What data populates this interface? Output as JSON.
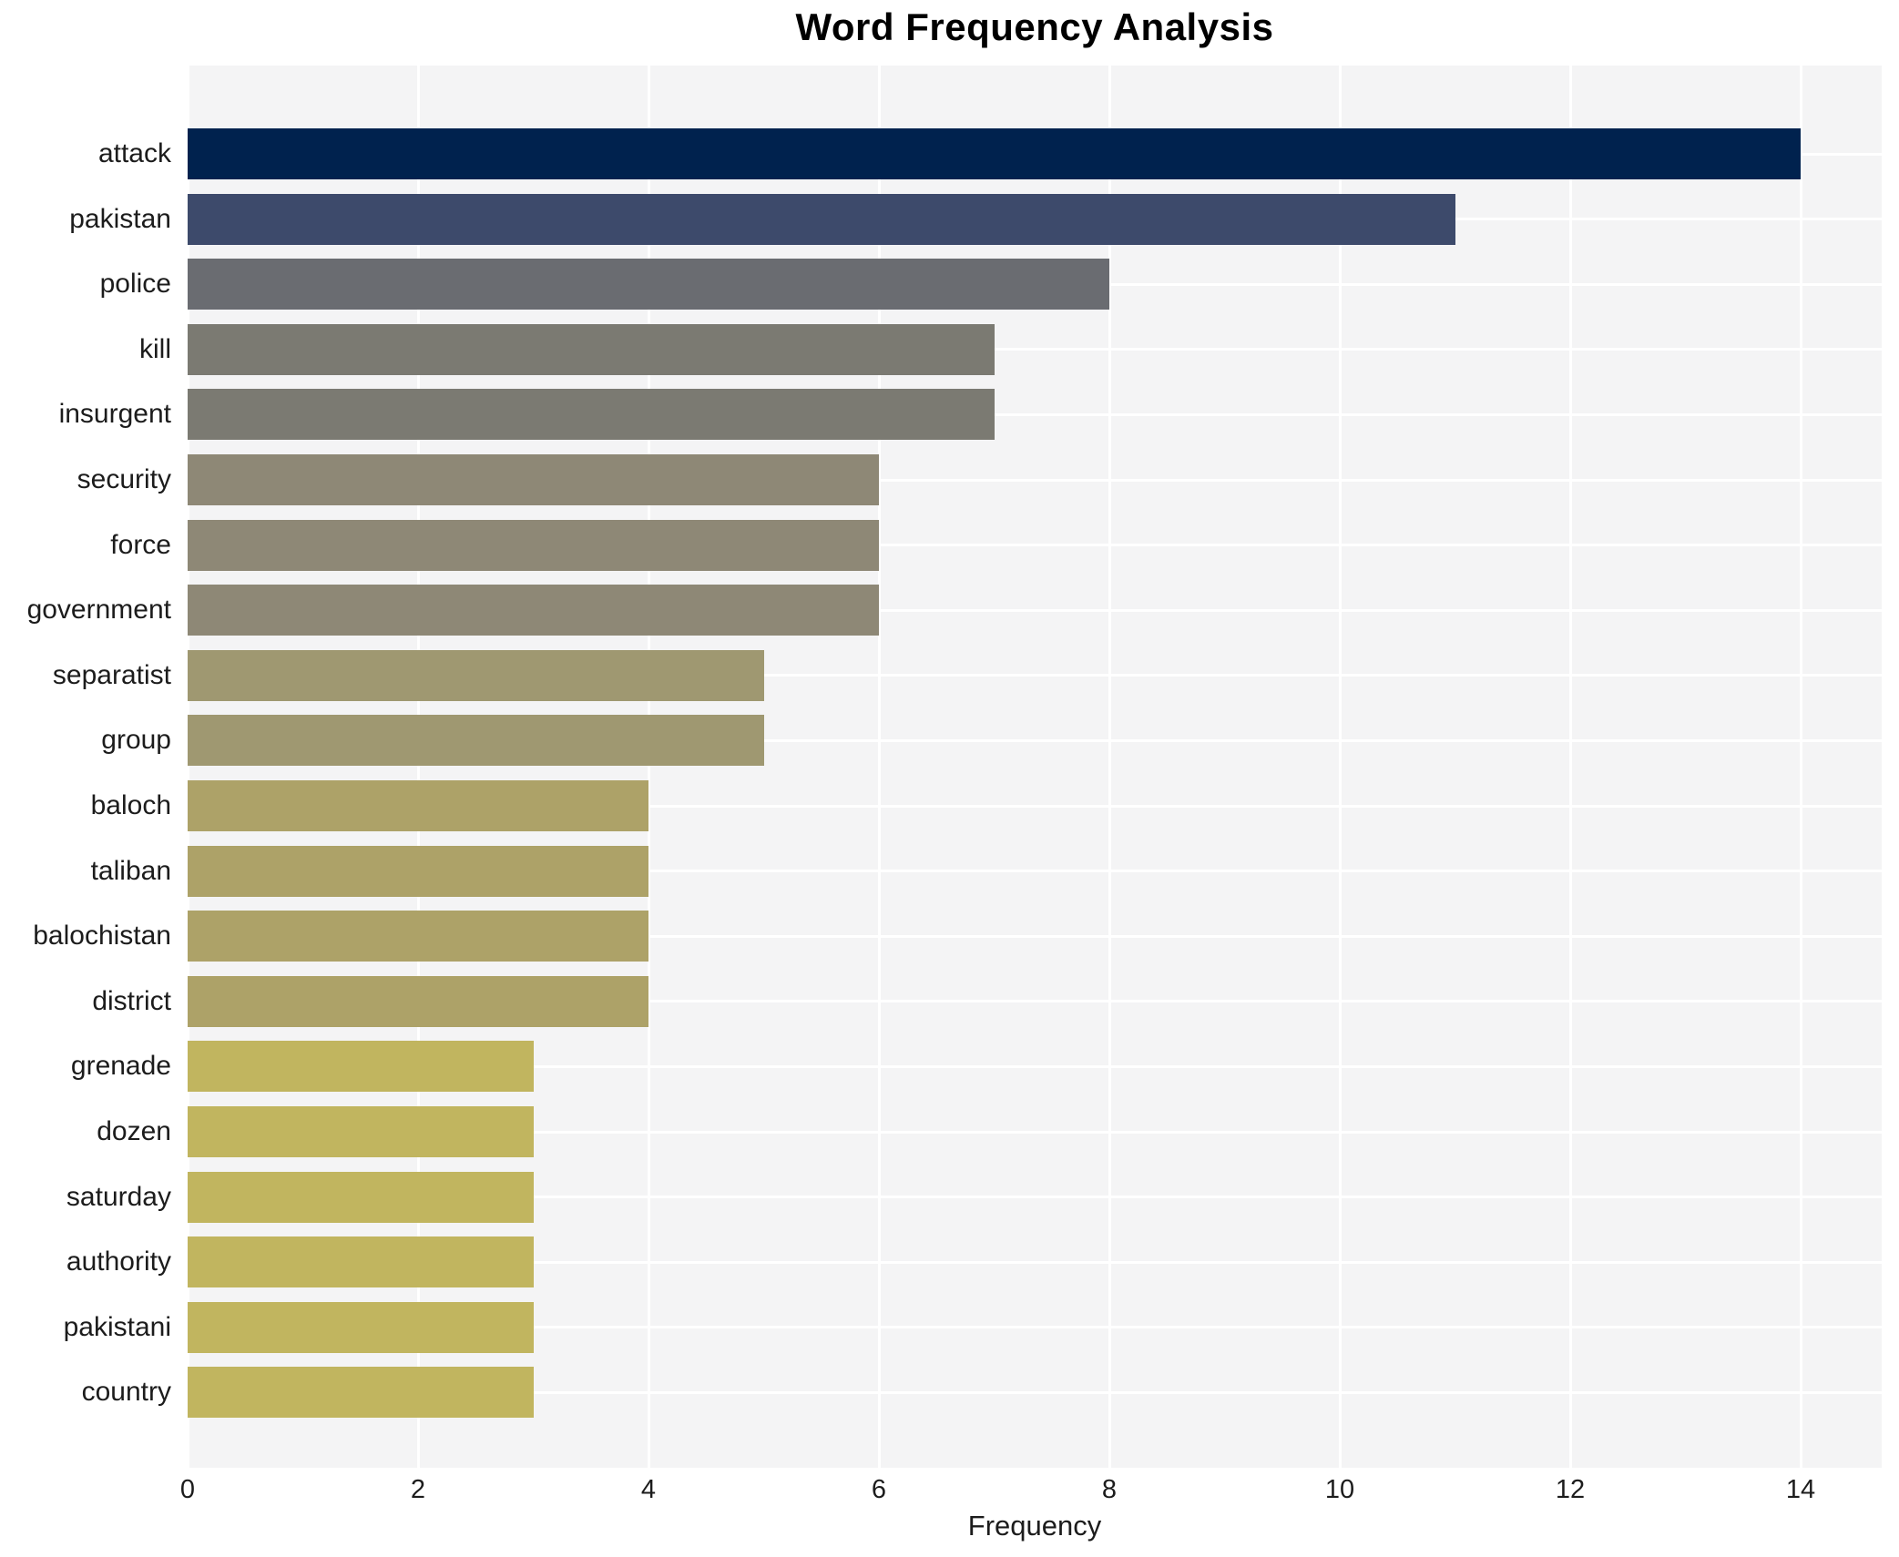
{
  "chart_data": {
    "type": "bar",
    "orientation": "horizontal",
    "title": "Word Frequency Analysis",
    "xlabel": "Frequency",
    "ylabel": "",
    "categories": [
      "attack",
      "pakistan",
      "police",
      "kill",
      "insurgent",
      "security",
      "force",
      "government",
      "separatist",
      "group",
      "baloch",
      "taliban",
      "balochistan",
      "district",
      "grenade",
      "dozen",
      "saturday",
      "authority",
      "pakistani",
      "country"
    ],
    "values": [
      14,
      11,
      8,
      7,
      7,
      6,
      6,
      6,
      5,
      5,
      4,
      4,
      4,
      4,
      3,
      3,
      3,
      3,
      3,
      3
    ],
    "bar_colors": [
      "#00224e",
      "#3d4a6b",
      "#6a6c71",
      "#7b7a72",
      "#7b7a72",
      "#8e8876",
      "#8e8876",
      "#8e8876",
      "#9f9871",
      "#9f9871",
      "#ada268",
      "#ada268",
      "#ada268",
      "#ada268",
      "#c1b55f",
      "#c1b55f",
      "#c1b55f",
      "#c1b55f",
      "#c1b55f",
      "#c1b55f"
    ],
    "xticks": [
      0,
      2,
      4,
      6,
      8,
      10,
      12,
      14
    ],
    "xlim": [
      0,
      14.7
    ],
    "grid": true,
    "legend_position": "none",
    "colormap": "cividis",
    "plot_background": "#f4f4f5",
    "grid_color": "#ffffff",
    "text_color": "#1c1c1c"
  }
}
